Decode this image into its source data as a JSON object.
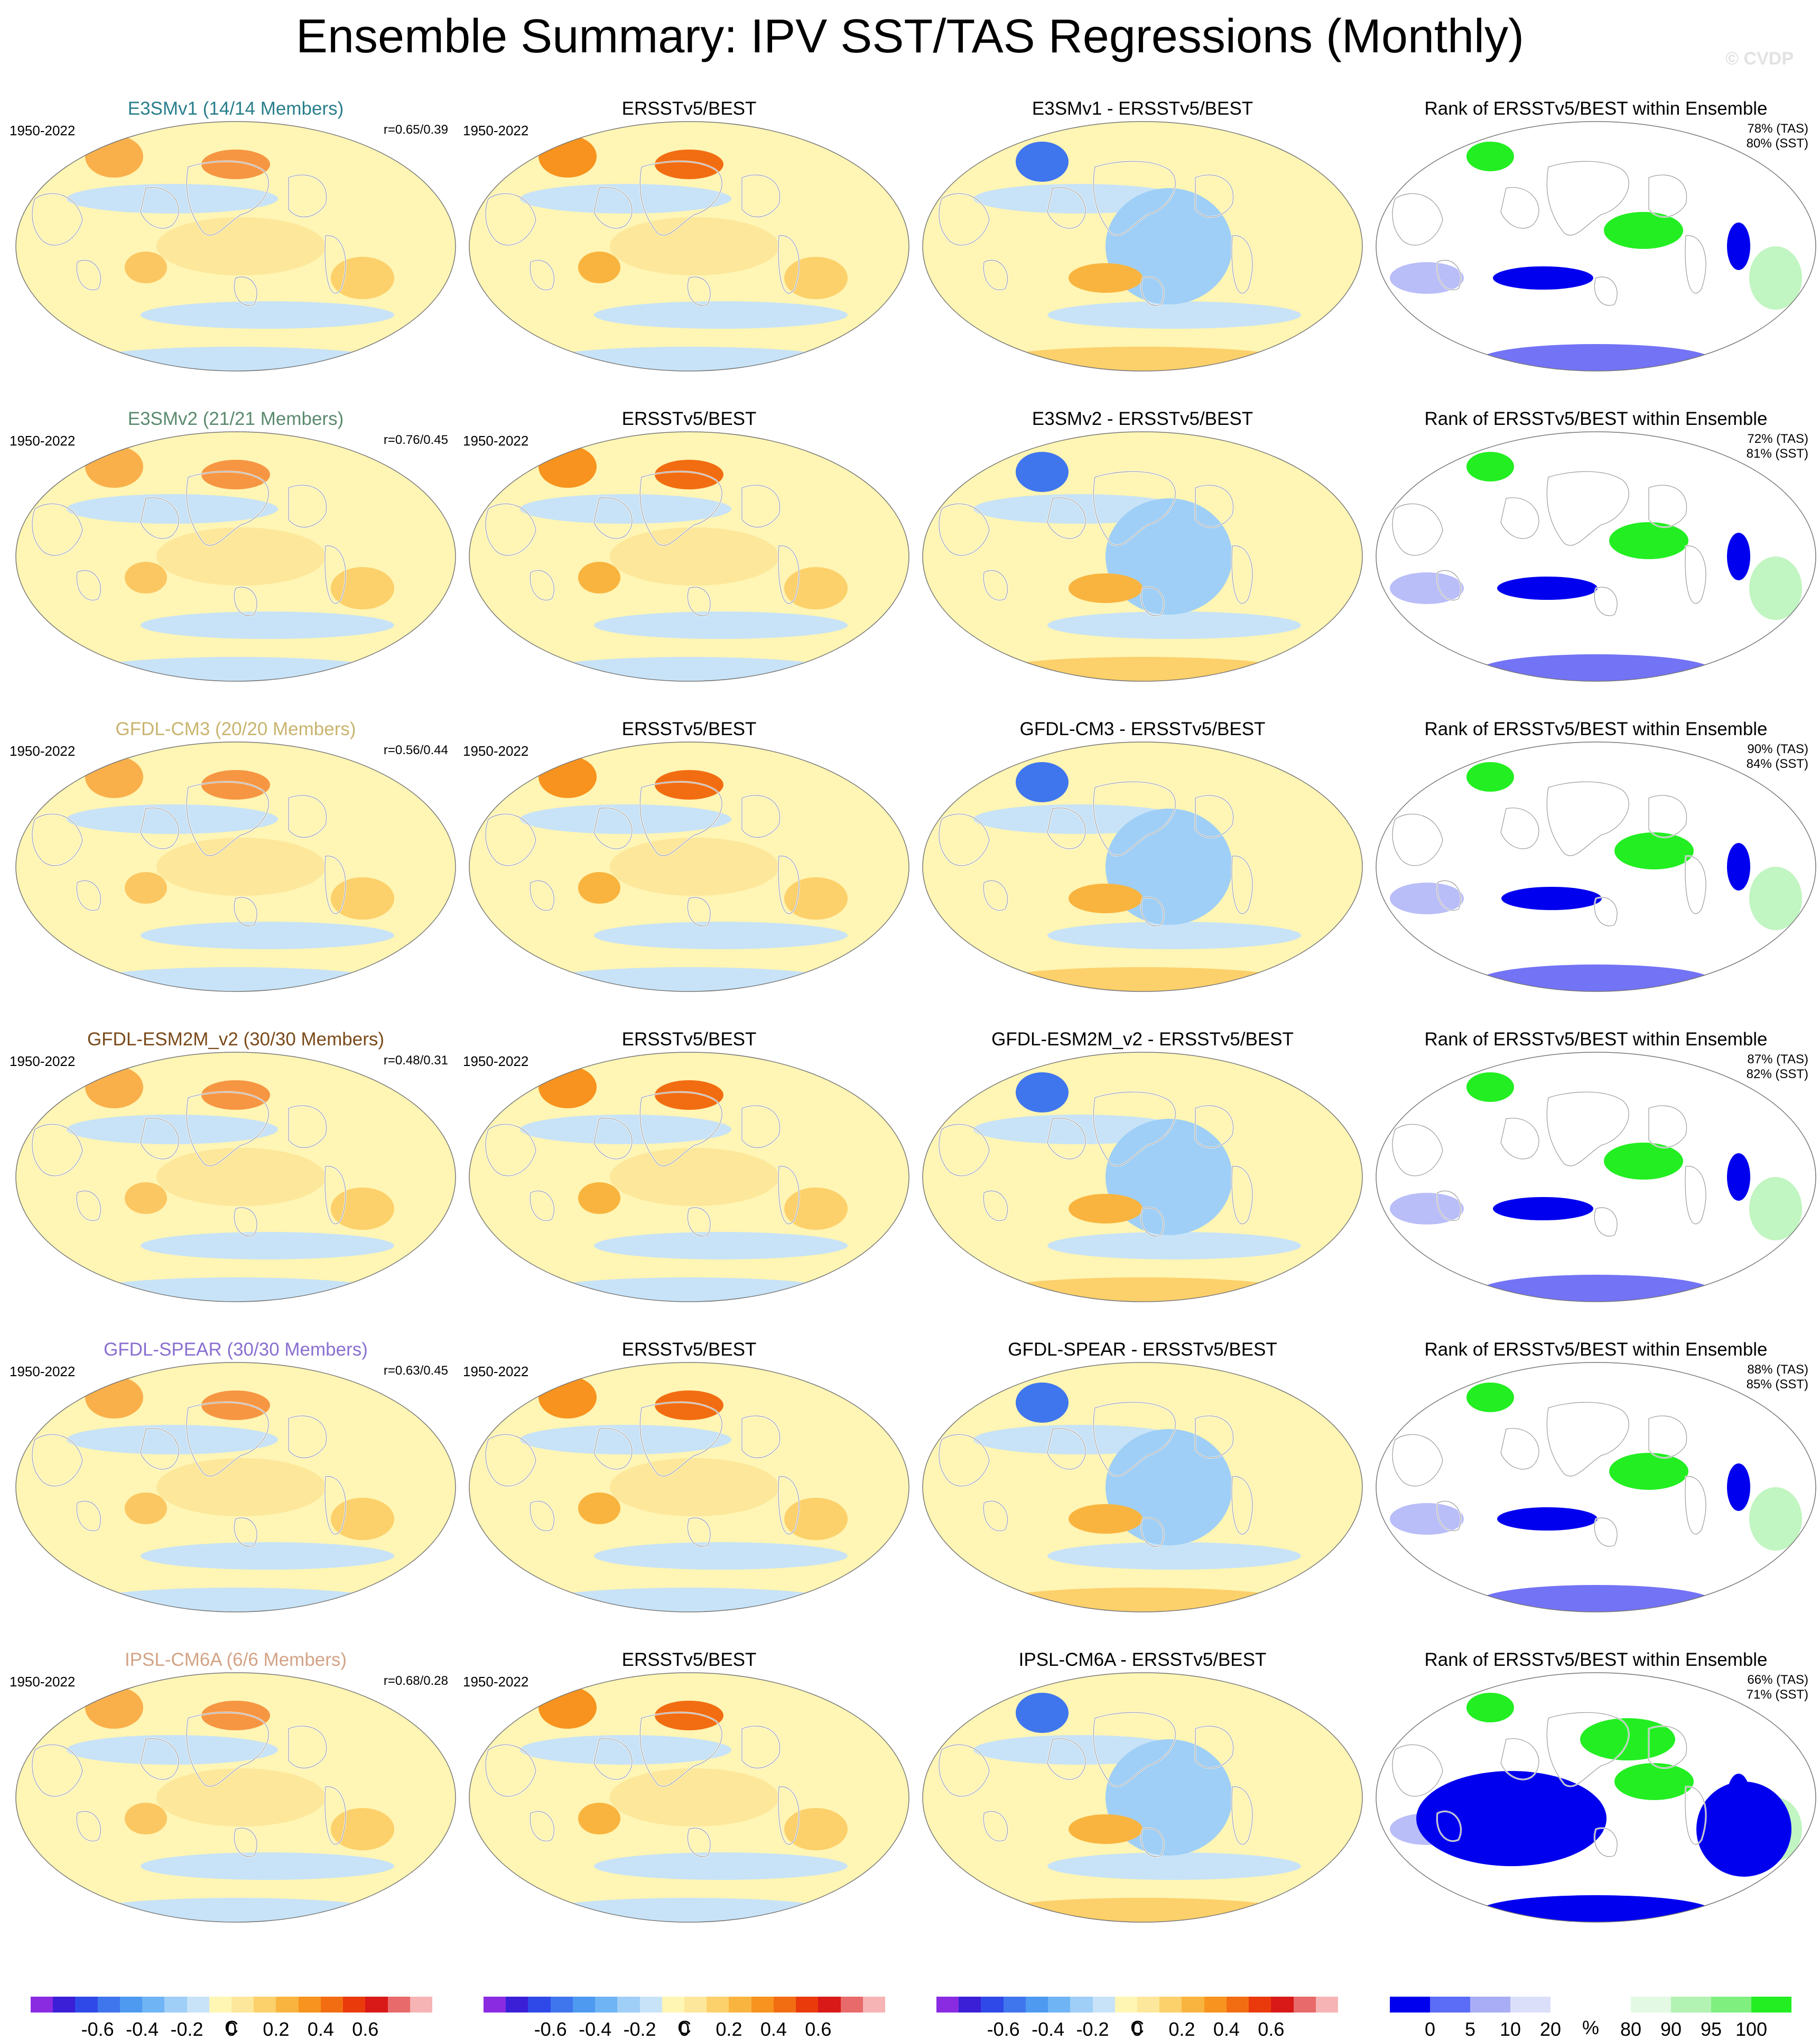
{
  "title": "Ensemble Summary: IPV SST/TAS Regressions (Monthly)",
  "watermark": "© CVDP",
  "period": "1950-2022",
  "rows": [
    {
      "model_title": "E3SMv1 (14/14 Members)",
      "model_color": "#2a7f8c",
      "corr": "r=0.65/0.39",
      "obs_title": "ERSSTv5/BEST",
      "diff_title": "E3SMv1 - ERSSTv5/BEST",
      "rank_title": "Rank of ERSSTv5/BEST within Ensemble",
      "rank_tas": "78% (TAS)",
      "rank_sst": "80% (SST)"
    },
    {
      "model_title": "E3SMv2 (21/21 Members)",
      "model_color": "#5b8a6e",
      "corr": "r=0.76/0.45",
      "obs_title": "ERSSTv5/BEST",
      "diff_title": "E3SMv2 - ERSSTv5/BEST",
      "rank_title": "Rank of ERSSTv5/BEST within Ensemble",
      "rank_tas": "72% (TAS)",
      "rank_sst": "81% (SST)"
    },
    {
      "model_title": "GFDL-CM3 (20/20 Members)",
      "model_color": "#c9b46e",
      "corr": "r=0.56/0.44",
      "obs_title": "ERSSTv5/BEST",
      "diff_title": "GFDL-CM3 - ERSSTv5/BEST",
      "rank_title": "Rank of ERSSTv5/BEST within Ensemble",
      "rank_tas": "90% (TAS)",
      "rank_sst": "84% (SST)"
    },
    {
      "model_title": "GFDL-ESM2M_v2 (30/30 Members)",
      "model_color": "#7a4a1a",
      "corr": "r=0.48/0.31",
      "obs_title": "ERSSTv5/BEST",
      "diff_title": "GFDL-ESM2M_v2 - ERSSTv5/BEST",
      "rank_title": "Rank of ERSSTv5/BEST within Ensemble",
      "rank_tas": "87% (TAS)",
      "rank_sst": "82% (SST)"
    },
    {
      "model_title": "GFDL-SPEAR (30/30 Members)",
      "model_color": "#8a6fd0",
      "corr": "r=0.63/0.45",
      "obs_title": "ERSSTv5/BEST",
      "diff_title": "GFDL-SPEAR - ERSSTv5/BEST",
      "rank_title": "Rank of ERSSTv5/BEST within Ensemble",
      "rank_tas": "88% (TAS)",
      "rank_sst": "85% (SST)"
    },
    {
      "model_title": "IPSL-CM6A (6/6 Members)",
      "model_color": "#d3a386",
      "corr": "r=0.68/0.28",
      "obs_title": "ERSSTv5/BEST",
      "diff_title": "IPSL-CM6A - ERSSTv5/BEST",
      "rank_title": "Rank of ERSSTv5/BEST within Ensemble",
      "rank_tas": "66% (TAS)",
      "rank_sst": "71% (SST)"
    }
  ],
  "colorbars": {
    "diverging_colors": [
      "#8a2be2",
      "#3a1fd6",
      "#2f49e8",
      "#3f76ee",
      "#4e9af0",
      "#6fb4f4",
      "#9fcff6",
      "#c8e3f7",
      "#fff6b4",
      "#fde79a",
      "#fcd06a",
      "#f9b43f",
      "#f7931e",
      "#f26d12",
      "#ea3a0c",
      "#d91818",
      "#e86a6a",
      "#f6b4b4"
    ],
    "diverging_ticks": [
      "-0.6",
      "-0.4",
      "-0.2",
      "0",
      "0.2",
      "0.4",
      "0.6"
    ],
    "diverging_unit": "C",
    "rank_colors": [
      "#0000ee",
      "#5b6cf6",
      "#a8adf6",
      "#dcdff9",
      "#ffffff",
      "#ffffff",
      "#e3f9e3",
      "#b2f2b2",
      "#7ff07f",
      "#22ee22"
    ],
    "rank_ticks": [
      "0",
      "5",
      "10",
      "20",
      "80",
      "90",
      "95",
      "100"
    ],
    "rank_unit": "%"
  },
  "colors": {
    "ocean_neutral": "#fff5b4",
    "ocean_cool": "#c8e3f7",
    "warm_anomaly": "#f7931e",
    "cool_anomaly": "#3f76ee",
    "rank_low": "#0000ee",
    "rank_high": "#22ee22"
  }
}
